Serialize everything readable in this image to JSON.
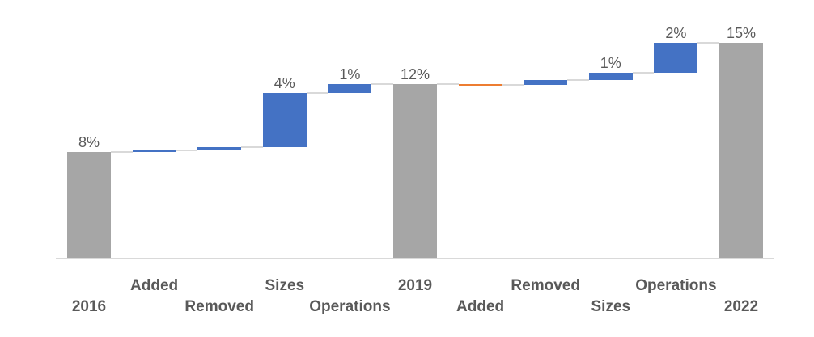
{
  "chart_data": {
    "type": "waterfall",
    "title": "",
    "legend": "none",
    "grid": false,
    "y_axis_visible": false,
    "x_axis_line_visible": true,
    "background": "#FFFFFF",
    "unit": "percent",
    "ylim": [
      0,
      17
    ],
    "categories": [
      "2016",
      "Added",
      "Removed",
      "Sizes",
      "Operations",
      "2019",
      "Added",
      "Removed",
      "Sizes",
      "Operations",
      "2022"
    ],
    "bars": [
      {
        "category": "2016",
        "kind": "total",
        "delta": 7.5,
        "cumulative": 7.5,
        "data_label": "8%",
        "label_row": "lower"
      },
      {
        "category": "Added",
        "kind": "increase",
        "delta": 0.07,
        "cumulative": 7.57,
        "data_label": "",
        "label_row": "upper"
      },
      {
        "category": "Removed",
        "kind": "increase",
        "delta": 0.25,
        "cumulative": 7.82,
        "data_label": "",
        "label_row": "lower"
      },
      {
        "category": "Sizes",
        "kind": "increase",
        "delta": 3.8,
        "cumulative": 11.62,
        "data_label": "4%",
        "label_row": "upper"
      },
      {
        "category": "Operations",
        "kind": "increase",
        "delta": 0.6,
        "cumulative": 12.22,
        "data_label": "1%",
        "label_row": "lower"
      },
      {
        "category": "2019",
        "kind": "total",
        "delta": 12.22,
        "cumulative": 12.22,
        "data_label": "12%",
        "label_row": "upper"
      },
      {
        "category": "Added",
        "kind": "decrease",
        "delta": -0.04,
        "cumulative": 12.18,
        "data_label": "",
        "label_row": "lower"
      },
      {
        "category": "Removed",
        "kind": "increase",
        "delta": 0.35,
        "cumulative": 12.53,
        "data_label": "",
        "label_row": "upper"
      },
      {
        "category": "Sizes",
        "kind": "increase",
        "delta": 0.5,
        "cumulative": 13.03,
        "data_label": "1%",
        "label_row": "lower"
      },
      {
        "category": "Operations",
        "kind": "increase",
        "delta": 2.1,
        "cumulative": 15.13,
        "data_label": "2%",
        "label_row": "upper"
      },
      {
        "category": "2022",
        "kind": "total",
        "delta": 15.13,
        "cumulative": 15.13,
        "data_label": "15%",
        "label_row": "lower"
      }
    ],
    "colors": {
      "total": "#A6A6A6",
      "increase": "#4472C4",
      "decrease": "#ED7D31",
      "connector": "#D9D9D9",
      "axis_line": "#D9D9D9",
      "data_label_text": "#595959",
      "category_label_text": "#595959"
    }
  }
}
